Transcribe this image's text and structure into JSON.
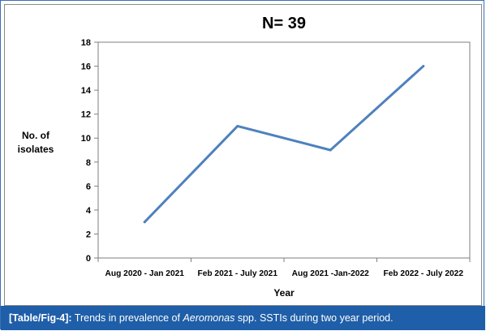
{
  "chart_data": {
    "type": "line",
    "title": "N= 39",
    "xlabel": "Year",
    "ylabel": [
      "No. of",
      "isolates"
    ],
    "categories": [
      "Aug 2020 - Jan 2021",
      "Feb 2021 - July 2021",
      "Aug 2021 -Jan-2022",
      "Feb 2022 - July 2022"
    ],
    "series": [
      {
        "values": [
          3,
          11,
          9,
          16
        ]
      }
    ],
    "ylim": [
      0,
      18
    ],
    "yticks": [
      "0",
      "2",
      "4",
      "6",
      "8",
      "10",
      "12",
      "14",
      "16",
      "18"
    ],
    "grid": false,
    "line_color": "#4f81bd"
  },
  "caption": {
    "label": "[Table/Fig-4]:",
    "text_before": " Trends in prevalence of ",
    "italic": "Aeromonas",
    "text_after": " spp. SSTIs during two year period."
  }
}
